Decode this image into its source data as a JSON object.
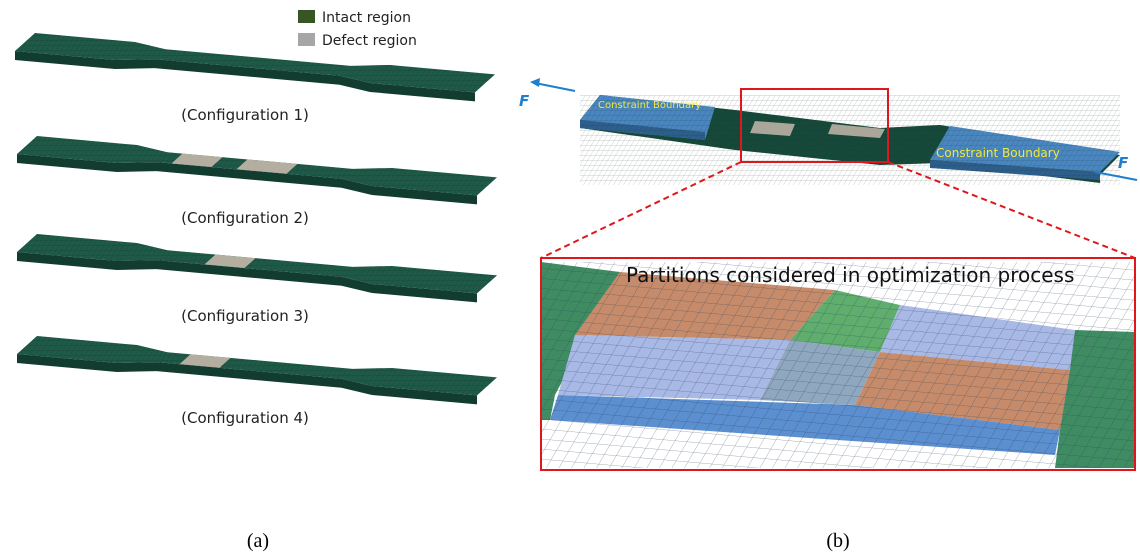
{
  "legend": [
    {
      "label": "Intact region"
    },
    {
      "label": "Defect region"
    }
  ],
  "configurations": [
    {
      "label": "(Configuration 1)"
    },
    {
      "label": "(Configuration 2)"
    },
    {
      "label": "(Configuration 3)"
    },
    {
      "label": "(Configuration 4)"
    }
  ],
  "panel_b": {
    "force_labels": [
      "F",
      "F"
    ],
    "boundary_labels": [
      "Constraint Boundary",
      "Constraint Boundary"
    ],
    "zoom_title": "Partitions considered in optimization process"
  },
  "captions": [
    "(a)",
    "(b)"
  ]
}
